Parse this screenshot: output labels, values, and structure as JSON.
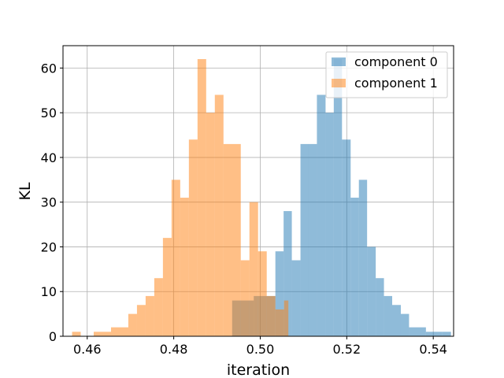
{
  "chart_data": {
    "type": "bar",
    "xlabel": "iteration",
    "ylabel": "KL",
    "xlim": [
      0.4544,
      0.5447
    ],
    "ylim": [
      0,
      65
    ],
    "xticks": [
      0.46,
      0.48,
      0.5,
      0.52,
      0.54
    ],
    "xtick_labels": [
      "0.46",
      "0.48",
      "0.50",
      "0.52",
      "0.54"
    ],
    "yticks": [
      0,
      10,
      20,
      30,
      40,
      50,
      60
    ],
    "ytick_labels": [
      "0",
      "10",
      "20",
      "30",
      "40",
      "50",
      "60"
    ],
    "grid": true,
    "legend_position": "upper-right",
    "series": [
      {
        "name": "component 0",
        "color": "#1f77b4",
        "alpha": 0.5,
        "bins": [
          [
            0.4935,
            0.4985,
            8
          ],
          [
            0.4985,
            0.5035,
            9
          ],
          [
            0.5035,
            0.5054,
            19
          ],
          [
            0.5054,
            0.5073,
            28
          ],
          [
            0.5073,
            0.5093,
            17
          ],
          [
            0.5093,
            0.5112,
            43
          ],
          [
            0.5112,
            0.5131,
            43
          ],
          [
            0.5131,
            0.5151,
            54
          ],
          [
            0.5151,
            0.517,
            50
          ],
          [
            0.517,
            0.5189,
            62
          ],
          [
            0.5189,
            0.5209,
            44
          ],
          [
            0.5209,
            0.5228,
            31
          ],
          [
            0.5228,
            0.5247,
            35
          ],
          [
            0.5247,
            0.5267,
            20
          ],
          [
            0.5267,
            0.5286,
            13
          ],
          [
            0.5286,
            0.5305,
            9
          ],
          [
            0.5305,
            0.5325,
            7
          ],
          [
            0.5325,
            0.5344,
            5
          ],
          [
            0.5344,
            0.5383,
            2
          ],
          [
            0.5383,
            0.5421,
            1
          ],
          [
            0.5421,
            0.544,
            0
          ],
          [
            0.5421,
            0.5441,
            1
          ]
        ]
      },
      {
        "name": "component 1",
        "color": "#ff7f0e",
        "alpha": 0.5,
        "bins": [
          [
            0.4565,
            0.4585,
            1
          ],
          [
            0.4585,
            0.4615,
            0
          ],
          [
            0.4615,
            0.4655,
            1
          ],
          [
            0.4655,
            0.4695,
            2
          ],
          [
            0.4695,
            0.4715,
            5
          ],
          [
            0.4715,
            0.4735,
            7
          ],
          [
            0.4735,
            0.4755,
            9
          ],
          [
            0.4755,
            0.4775,
            13
          ],
          [
            0.4775,
            0.4795,
            22
          ],
          [
            0.4795,
            0.4815,
            35
          ],
          [
            0.4815,
            0.4835,
            31
          ],
          [
            0.4835,
            0.4855,
            44
          ],
          [
            0.4855,
            0.4875,
            62
          ],
          [
            0.4875,
            0.4895,
            50
          ],
          [
            0.4895,
            0.4915,
            54
          ],
          [
            0.4915,
            0.4955,
            43
          ],
          [
            0.4955,
            0.4975,
            17
          ],
          [
            0.4975,
            0.4995,
            30
          ],
          [
            0.4995,
            0.5015,
            19
          ],
          [
            0.5015,
            0.5035,
            9
          ],
          [
            0.5035,
            0.5055,
            6
          ],
          [
            0.5055,
            0.5065,
            8
          ]
        ]
      }
    ]
  }
}
